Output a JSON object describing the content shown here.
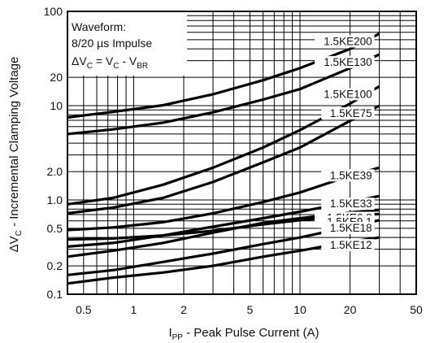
{
  "chart_data": {
    "type": "line",
    "xlabel_main": "I",
    "xlabel_sub": "PP",
    "xlabel_rest": " - Peak Pulse Current (A)",
    "ylabel_main": "ΔV",
    "ylabel_sub": "C",
    "ylabel_rest": " - Incremental Clamping Voltage",
    "x_scale": "log",
    "y_scale": "log",
    "xlim": [
      0.4,
      50
    ],
    "ylim": [
      0.1,
      100
    ],
    "grid": true,
    "x_ticks": [
      {
        "value": 0.5,
        "label": "0.5"
      },
      {
        "value": 1,
        "label": "1"
      },
      {
        "value": 2,
        "label": "2"
      },
      {
        "value": 5,
        "label": "5"
      },
      {
        "value": 10,
        "label": "10"
      },
      {
        "value": 20,
        "label": "20"
      },
      {
        "value": 50,
        "label": "50"
      }
    ],
    "y_ticks": [
      {
        "value": 0.1,
        "label": "0.1"
      },
      {
        "value": 0.2,
        "label": "0.2"
      },
      {
        "value": 0.5,
        "label": "0.5"
      },
      {
        "value": 1,
        "label": "1.0"
      },
      {
        "value": 2,
        "label": "2.0"
      },
      {
        "value": 10,
        "label": "10"
      },
      {
        "value": 20,
        "label": "20"
      },
      {
        "value": 100,
        "label": "100"
      }
    ],
    "x_grid": [
      0.5,
      0.6,
      0.7,
      0.8,
      0.9,
      1,
      2,
      3,
      4,
      5,
      6,
      7,
      8,
      9,
      10,
      20,
      30,
      40,
      50
    ],
    "y_grid": [
      0.1,
      0.2,
      0.3,
      0.4,
      0.5,
      0.6,
      0.7,
      0.8,
      0.9,
      1,
      2,
      3,
      4,
      5,
      6,
      7,
      8,
      9,
      10,
      20,
      30,
      40,
      50,
      60,
      70,
      80,
      90,
      100
    ],
    "annotation": {
      "line1": "Waveform:",
      "line2": "8/20 µs Impulse",
      "line3_main": "ΔV",
      "line3_sub1": "C",
      "line3_mid": " = V",
      "line3_sub2": "C",
      "line3_mid2": " - V",
      "line3_sub3": "BR"
    },
    "series": [
      {
        "name": "1.5KE200",
        "x": [
          0.4,
          0.75,
          1.5,
          3,
          6,
          10,
          20,
          30
        ],
        "y": [
          7.5,
          8.6,
          10.1,
          13.2,
          18.6,
          25,
          40,
          58
        ]
      },
      {
        "name": "1.5KE130",
        "x": [
          0.4,
          0.75,
          1.5,
          3,
          6,
          10,
          20,
          30
        ],
        "y": [
          5.0,
          5.6,
          6.6,
          8.5,
          11.6,
          15.0,
          25,
          35
        ]
      },
      {
        "name": "1.5KE100",
        "x": [
          0.4,
          0.75,
          1.5,
          3,
          6,
          10,
          20,
          30
        ],
        "y": [
          0.9,
          1.05,
          1.45,
          2.2,
          3.6,
          5.5,
          10.5,
          16
        ]
      },
      {
        "name": "1.5KE75",
        "x": [
          0.4,
          0.75,
          1.5,
          3,
          6,
          10,
          20,
          30
        ],
        "y": [
          0.72,
          0.83,
          1.05,
          1.55,
          2.5,
          3.6,
          6.9,
          10
        ]
      },
      {
        "name": "1.5KE39",
        "x": [
          0.4,
          0.75,
          1.5,
          3,
          6,
          10,
          20,
          30
        ],
        "y": [
          0.48,
          0.51,
          0.58,
          0.72,
          0.95,
          1.2,
          1.8,
          2.2
        ]
      },
      {
        "name": "1.5KE33",
        "x": [
          0.4,
          0.75,
          1.5,
          3,
          6,
          10,
          20,
          30
        ],
        "y": [
          0.32,
          0.35,
          0.42,
          0.52,
          0.64,
          0.75,
          0.95,
          1.1
        ]
      },
      {
        "name": "1.5KE6.8",
        "x": [
          0.4,
          0.75,
          1.5,
          3,
          6,
          10,
          20,
          30
        ],
        "y": [
          0.25,
          0.29,
          0.35,
          0.45,
          0.57,
          0.64,
          0.74,
          0.78
        ]
      },
      {
        "name": "1.5KE9.1",
        "x": [
          0.4,
          0.75,
          1.5,
          3,
          6,
          10,
          20,
          30
        ],
        "y": [
          0.38,
          0.39,
          0.42,
          0.47,
          0.55,
          0.61,
          0.68,
          0.71
        ]
      },
      {
        "name": "1.5KE18",
        "x": [
          0.4,
          0.75,
          1.5,
          3,
          6,
          10,
          20,
          30
        ],
        "y": [
          0.16,
          0.18,
          0.22,
          0.27,
          0.34,
          0.4,
          0.52,
          0.61
        ]
      },
      {
        "name": "1.5KE12",
        "x": [
          0.4,
          0.75,
          1.5,
          3,
          6,
          10,
          20,
          30
        ],
        "y": [
          0.13,
          0.15,
          0.17,
          0.2,
          0.25,
          0.29,
          0.36,
          0.4
        ]
      }
    ]
  }
}
